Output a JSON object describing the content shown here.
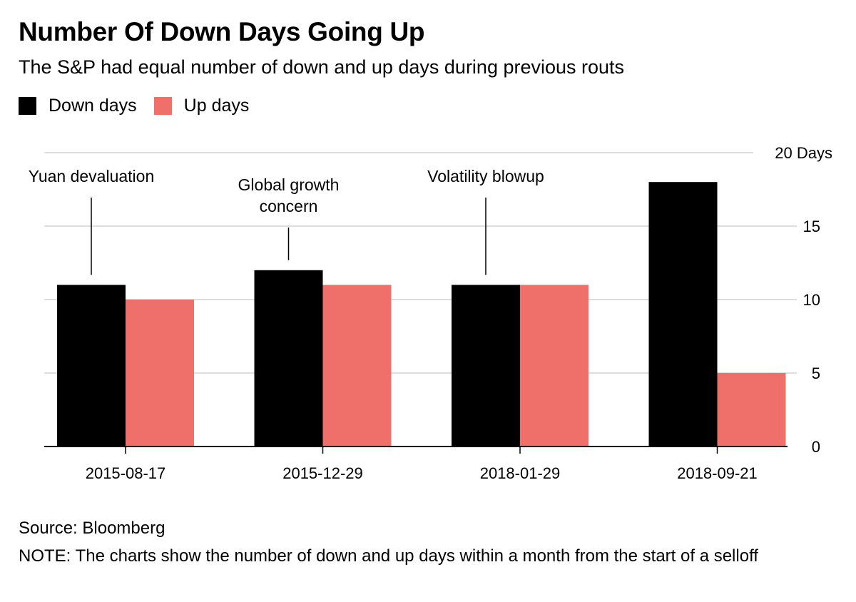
{
  "title": "Number Of Down Days Going Up",
  "subtitle": "The S&P had equal number of down and up days during previous routs",
  "legend": [
    {
      "label": "Down days",
      "color": "#000000"
    },
    {
      "label": "Up days",
      "color": "#ef6f6a"
    }
  ],
  "source": "Source: Bloomberg",
  "note": "NOTE: The charts show the number of down and up days within a month from the start of a selloff",
  "chart_data": {
    "type": "bar",
    "categories": [
      "2015-08-17",
      "2015-12-29",
      "2018-01-29",
      "2018-09-21"
    ],
    "series": [
      {
        "name": "Down days",
        "color": "#000000",
        "values": [
          11,
          12,
          11,
          18
        ]
      },
      {
        "name": "Up days",
        "color": "#ef6f6a",
        "values": [
          10,
          11,
          11,
          5
        ]
      }
    ],
    "ylim": [
      0,
      20
    ],
    "yticks": [
      {
        "value": 0,
        "label": "0"
      },
      {
        "value": 5,
        "label": "5"
      },
      {
        "value": 10,
        "label": "10"
      },
      {
        "value": 15,
        "label": "15"
      },
      {
        "value": 20,
        "label": "20 Days"
      }
    ],
    "grid": true,
    "annotations": [
      {
        "category": "2015-08-17",
        "lines": [
          "Yuan devaluation"
        ]
      },
      {
        "category": "2015-12-29",
        "lines": [
          "Global growth",
          "concern"
        ]
      },
      {
        "category": "2018-01-29",
        "lines": [
          "Volatility blowup"
        ]
      }
    ]
  }
}
